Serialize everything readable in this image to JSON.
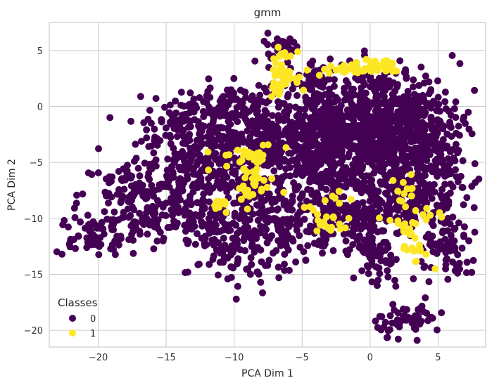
{
  "chart_data": {
    "type": "scatter",
    "title": "gmm",
    "xlabel": "PCA Dim 1",
    "ylabel": "PCA Dim 2",
    "xlim": [
      -23.6,
      8.5
    ],
    "ylim": [
      -21.5,
      7.5
    ],
    "xticks": [
      -20,
      -15,
      -10,
      -5,
      0,
      5
    ],
    "yticks": [
      5,
      0,
      -5,
      -10,
      -15,
      -20
    ],
    "xtick_labels": [
      "−20",
      "−15",
      "−10",
      "−5",
      "0",
      "5"
    ],
    "ytick_labels": [
      "5",
      "0",
      "−5",
      "−10",
      "−15",
      "−20"
    ],
    "grid": true,
    "legend": {
      "title": "Classes",
      "placement": "lower-left"
    },
    "series": [
      {
        "name": "0",
        "color": "#440154",
        "clusters": [
          {
            "cx": -8,
            "cy": -4,
            "sx": 3.2,
            "sy": 2.6,
            "n": 340
          },
          {
            "cx": -12,
            "cy": -6,
            "sx": 2.8,
            "sy": 2.2,
            "n": 220
          },
          {
            "cx": -17,
            "cy": -8,
            "sx": 2.2,
            "sy": 1.8,
            "n": 140
          },
          {
            "cx": -20.5,
            "cy": -11.5,
            "sx": 1.5,
            "sy": 0.9,
            "n": 70
          },
          {
            "cx": -15,
            "cy": -10.5,
            "sx": 2.0,
            "sy": 1.0,
            "n": 70
          },
          {
            "cx": -10.5,
            "cy": -12.5,
            "sx": 1.3,
            "sy": 1.8,
            "n": 90
          },
          {
            "cx": -7,
            "cy": -11,
            "sx": 2.0,
            "sy": 1.8,
            "n": 160
          },
          {
            "cx": -3,
            "cy": -3,
            "sx": 3.0,
            "sy": 2.6,
            "n": 440
          },
          {
            "cx": 1,
            "cy": -1,
            "sx": 2.8,
            "sy": 2.4,
            "n": 420
          },
          {
            "cx": 3.5,
            "cy": -5,
            "sx": 1.6,
            "sy": 3.5,
            "n": 260
          },
          {
            "cx": 1,
            "cy": -7,
            "sx": 2.8,
            "sy": 2.5,
            "n": 300
          },
          {
            "cx": -11,
            "cy": 0,
            "sx": 2.0,
            "sy": 1.0,
            "n": 100
          },
          {
            "cx": -14,
            "cy": -2,
            "sx": 1.5,
            "sy": 1.2,
            "n": 60
          },
          {
            "cx": -6.5,
            "cy": 5.5,
            "sx": 0.7,
            "sy": 0.5,
            "n": 30
          },
          {
            "cx": 0.5,
            "cy": -14,
            "sx": 0.6,
            "sy": 1.5,
            "n": 50
          },
          {
            "cx": 3,
            "cy": -19,
            "sx": 1.3,
            "sy": 0.7,
            "n": 55
          },
          {
            "cx": 6,
            "cy": -13,
            "sx": 1.0,
            "sy": 1.5,
            "n": 60
          },
          {
            "cx": -2,
            "cy": -10.5,
            "sx": 1.8,
            "sy": 1.3,
            "n": 120
          },
          {
            "cx": -4,
            "cy": 2.5,
            "sx": 1.2,
            "sy": 0.6,
            "n": 40
          }
        ]
      },
      {
        "name": "1",
        "color": "#fde725",
        "clusters": [
          {
            "cx": -6.5,
            "cy": 3.0,
            "sx": 0.5,
            "sy": 0.9,
            "n": 45
          },
          {
            "cx": -1,
            "cy": 3.3,
            "sx": 1.3,
            "sy": 0.3,
            "n": 35
          },
          {
            "cx": 1,
            "cy": 3.6,
            "sx": 0.8,
            "sy": 0.3,
            "n": 20
          },
          {
            "cx": -9,
            "cy": -4.5,
            "sx": 1.2,
            "sy": 0.6,
            "n": 30
          },
          {
            "cx": -8.8,
            "cy": -7,
            "sx": 0.9,
            "sy": 0.9,
            "n": 25
          },
          {
            "cx": -11,
            "cy": -9,
            "sx": 0.4,
            "sy": 0.4,
            "n": 10
          },
          {
            "cx": -3,
            "cy": -10,
            "sx": 0.9,
            "sy": 1.2,
            "n": 25
          },
          {
            "cx": 3,
            "cy": -10.5,
            "sx": 1.0,
            "sy": 1.2,
            "n": 25
          },
          {
            "cx": 3.5,
            "cy": -13,
            "sx": 0.5,
            "sy": 0.5,
            "n": 12
          },
          {
            "cx": 2.5,
            "cy": -7.5,
            "sx": 0.5,
            "sy": 0.6,
            "n": 10
          }
        ]
      }
    ]
  }
}
